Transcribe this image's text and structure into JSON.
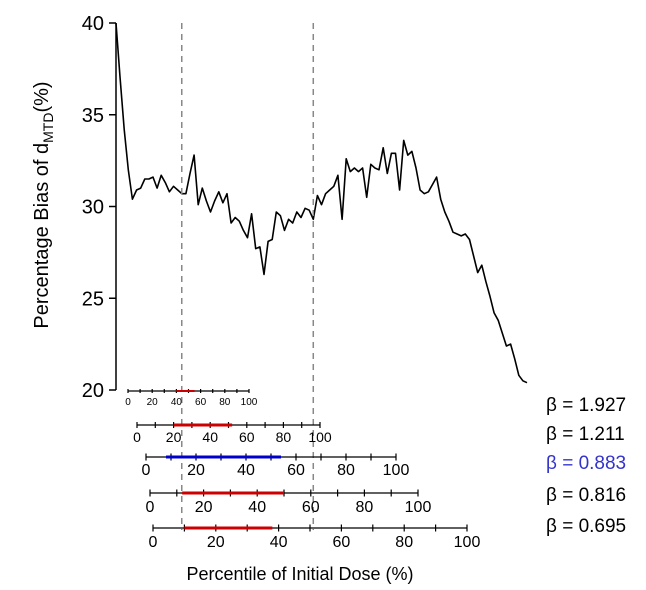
{
  "chart_data": {
    "type": "line",
    "ylabel_main": "Percentage Bias of d",
    "ylabel_sub": "MTD",
    "ylabel_suffix": "(%)",
    "xlabel": "Percentile of Initial Dose (%)",
    "ylim": [
      20,
      40
    ],
    "yticks": [
      20,
      25,
      30,
      35,
      40
    ],
    "grid": false,
    "line_color": "#000000",
    "series": [
      {
        "x": [
          0,
          1,
          2,
          3,
          4,
          5,
          6,
          7,
          8,
          9,
          10,
          11,
          12,
          13,
          14,
          15,
          16,
          17,
          18,
          19,
          20,
          21,
          22,
          23,
          24,
          25,
          26,
          27,
          28,
          29,
          30,
          31,
          32,
          33,
          34,
          35,
          36,
          37,
          38,
          39,
          40,
          41,
          42,
          43,
          44,
          45,
          46,
          47,
          48,
          49,
          50,
          51,
          52,
          53,
          54,
          55,
          56,
          57,
          58,
          59,
          60,
          61,
          62,
          63,
          64,
          65,
          66,
          67,
          68,
          69,
          70,
          71,
          72,
          73,
          74,
          75,
          76,
          77,
          78,
          79,
          80,
          81,
          82,
          83,
          84,
          85,
          86,
          87,
          88,
          89,
          90,
          91,
          92,
          93,
          94,
          95,
          96,
          97,
          98,
          99,
          100
        ],
        "y": [
          40.0,
          37.0,
          34.2,
          32.0,
          30.4,
          30.9,
          31.0,
          31.5,
          31.5,
          31.6,
          31.0,
          31.7,
          31.3,
          30.8,
          31.1,
          30.9,
          30.7,
          30.7,
          31.8,
          32.8,
          30.1,
          31.0,
          30.3,
          29.7,
          30.3,
          30.8,
          30.2,
          30.7,
          29.1,
          29.4,
          29.2,
          28.7,
          28.3,
          29.6,
          27.7,
          27.8,
          26.3,
          28.1,
          28.2,
          29.7,
          29.5,
          28.7,
          29.3,
          29.1,
          29.7,
          29.4,
          29.9,
          29.8,
          29.3,
          30.6,
          30.1,
          30.7,
          30.9,
          31.1,
          31.7,
          29.3,
          32.6,
          31.9,
          32.1,
          31.9,
          32.1,
          30.5,
          32.3,
          32.1,
          32.0,
          33.2,
          31.8,
          32.9,
          32.9,
          30.9,
          33.6,
          32.8,
          33.0,
          32.1,
          30.9,
          30.7,
          30.8,
          31.2,
          31.6,
          30.4,
          29.7,
          29.2,
          28.6,
          28.5,
          28.4,
          28.5,
          28.2,
          27.3,
          26.4,
          26.8,
          25.9,
          25.1,
          24.2,
          23.8,
          23.1,
          22.4,
          22.5,
          21.7,
          20.8,
          20.5,
          20.4
        ]
      }
    ],
    "vlines_at_x": [
      16,
      48
    ],
    "vline_style": "dashed",
    "sub_axes": [
      {
        "beta": "β = 1.927",
        "ticks": [
          "0",
          "20",
          "40",
          "60",
          "80",
          "100"
        ],
        "minor": true,
        "small": true,
        "interval": [
          40,
          55
        ],
        "highlight": false
      },
      {
        "beta": "β = 1.211",
        "ticks": [
          "0",
          "20",
          "40",
          "60",
          "80",
          "100"
        ],
        "minor": true,
        "small": false,
        "interval": [
          20,
          52
        ],
        "highlight": false
      },
      {
        "beta": "β = 0.883",
        "ticks": [
          "0",
          "20",
          "40",
          "60",
          "80",
          "100"
        ],
        "minor": true,
        "small": false,
        "interval": [
          8,
          54
        ],
        "highlight": true
      },
      {
        "beta": "β = 0.816",
        "ticks": [
          "0",
          "20",
          "40",
          "60",
          "80",
          "100"
        ],
        "minor": true,
        "small": false,
        "interval": [
          12,
          50
        ],
        "highlight": false
      },
      {
        "beta": "β = 0.695",
        "ticks": [
          "0",
          "20",
          "40",
          "60",
          "80",
          "100"
        ],
        "minor": true,
        "small": false,
        "interval": [
          10,
          38
        ],
        "highlight": false
      }
    ],
    "colors": {
      "interval": "#cc0000",
      "highlight": "#0000cc",
      "beta_highlight": "#3333cc",
      "text": "#000000",
      "vline": "#888888"
    }
  }
}
